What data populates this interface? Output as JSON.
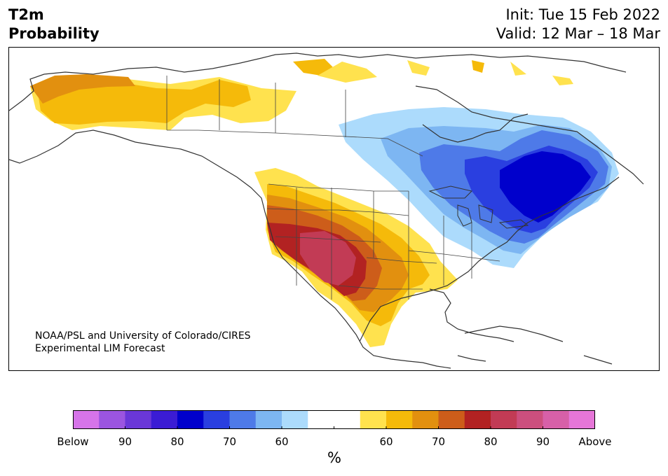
{
  "title": {
    "left_line1": "T2m",
    "left_line2": "Probability",
    "right_line1": "Init: Tue 15 Feb 2022",
    "right_line2": "Valid: 12 Mar – 18 Mar"
  },
  "credit": {
    "line1": "NOAA/PSL and University of Colorado/CIRES",
    "line2": "Experimental LIM Forecast"
  },
  "colorbar": {
    "unit": "%",
    "colors": [
      "#d674e9",
      "#9b55e0",
      "#6a37d8",
      "#3b1cd4",
      "#0000cc",
      "#2a3fe0",
      "#4e7ae8",
      "#7db6f2",
      "#acdbfc",
      "#ffffff",
      "#ffffff",
      "#ffe24e",
      "#f5ba0a",
      "#e2900f",
      "#cd5d1a",
      "#b22222",
      "#c23b55",
      "#cc4f7e",
      "#d760a8",
      "#e676d8"
    ],
    "tick_labels": [
      "Below",
      "90",
      "80",
      "70",
      "60",
      "",
      "60",
      "70",
      "80",
      "90",
      "Above"
    ]
  },
  "map": {
    "colors": {
      "coast": "#333333",
      "warm_light": "#ffe24e",
      "warm_mid": "#f5ba0a",
      "warm_orange": "#e2900f",
      "warm_rust": "#cd5d1a",
      "warm_red": "#b22222",
      "warm_rose": "#c23b55",
      "cold_lightest": "#acdbfc",
      "cold_light": "#7db6f2",
      "cold_mid": "#4e7ae8",
      "cold_strong": "#2a3fe0",
      "cold_deep": "#0000cc"
    }
  }
}
